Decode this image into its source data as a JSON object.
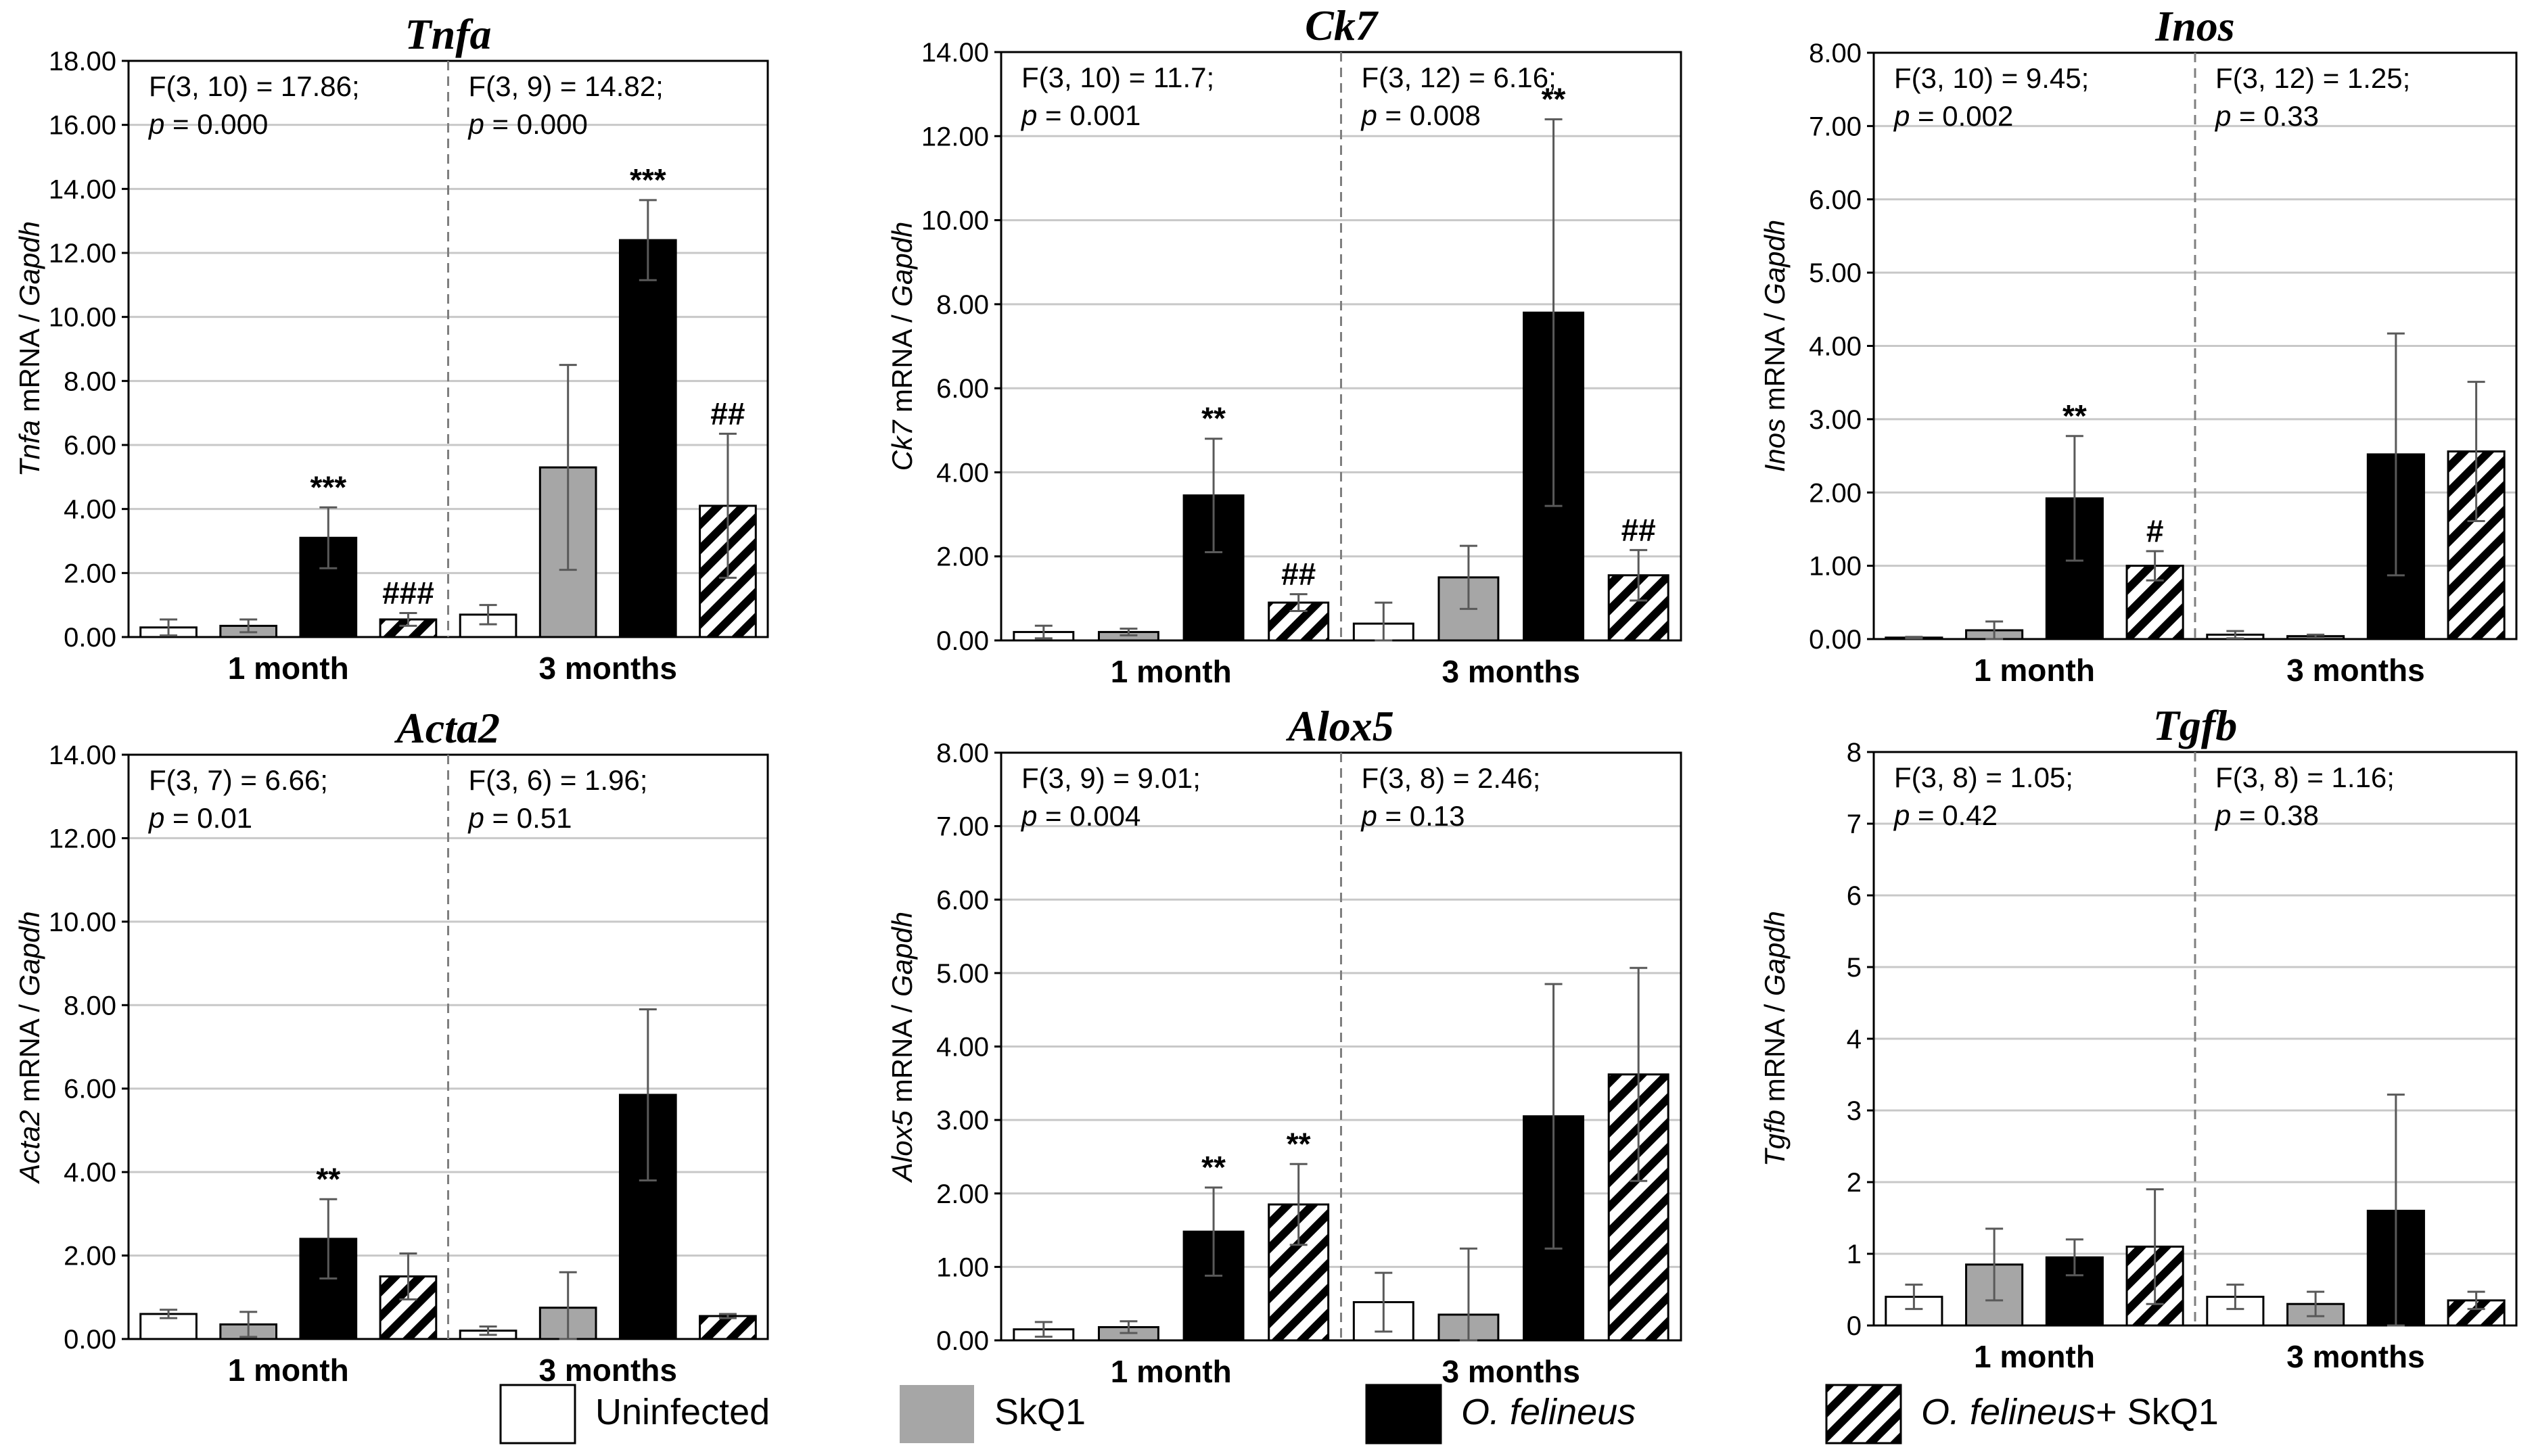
{
  "colors": {
    "uninfected": "#ffffff",
    "skq1": "#a6a6a6",
    "felineus": "#000000",
    "hatch": "#000000",
    "axis": "#000000",
    "grid": "#c8c8c8",
    "divider": "#7f7f7f",
    "error": "#595959"
  },
  "legend": {
    "items": [
      {
        "label": "Uninfected",
        "fill": "white"
      },
      {
        "label": "SkQ1",
        "fill": "gray"
      },
      {
        "label": "O. felineus",
        "fill": "black"
      },
      {
        "label": "O. felineus+ SkQ1",
        "fill": "hatch"
      }
    ]
  },
  "chart_data": [
    {
      "type": "bar",
      "title": "Tnfa",
      "ylabel_gene": "Tnfa",
      "ylabel_rest": " mRNA / ",
      "ylabel_ref": "Gapdh",
      "ylim": [
        0,
        18
      ],
      "ytick_step": 2,
      "ytick_decimals": 2,
      "groups": [
        {
          "label": "1 month",
          "stat_line1": "F(3, 10) = 17.86;",
          "stat_line2": "= 0.000",
          "values": [
            0.3,
            0.35,
            3.1,
            0.55
          ],
          "errors": [
            0.25,
            0.2,
            0.95,
            0.2
          ],
          "marks": [
            "",
            "",
            "***",
            "###"
          ]
        },
        {
          "label": "3 months",
          "stat_line1": "F(3, 9) = 14.82;",
          "stat_line2": "= 0.000",
          "values": [
            0.7,
            5.3,
            12.4,
            4.1
          ],
          "errors": [
            0.3,
            3.2,
            1.25,
            2.25
          ],
          "marks": [
            "",
            "",
            "***",
            "##"
          ]
        }
      ]
    },
    {
      "type": "bar",
      "title": "Ck7",
      "ylabel_gene": "Ck7",
      "ylabel_rest": " mRNA / ",
      "ylabel_ref": "Gapdh",
      "ylim": [
        0,
        14
      ],
      "ytick_step": 2,
      "ytick_decimals": 2,
      "groups": [
        {
          "label": "1 month",
          "stat_line1": "F(3, 10) = 11.7;",
          "stat_line2": "= 0.001",
          "values": [
            0.2,
            0.2,
            3.45,
            0.9
          ],
          "errors": [
            0.15,
            0.08,
            1.35,
            0.2
          ],
          "marks": [
            "",
            "",
            "**",
            "##"
          ]
        },
        {
          "label": "3 months",
          "stat_line1": "F(3, 12) = 6.16;",
          "stat_line2": "= 0.008",
          "values": [
            0.4,
            1.5,
            7.8,
            1.55
          ],
          "errors": [
            0.5,
            0.75,
            4.6,
            0.6
          ],
          "marks": [
            "",
            "",
            "**",
            "##"
          ]
        }
      ]
    },
    {
      "type": "bar",
      "title": "Inos",
      "ylabel_gene": "Inos",
      "ylabel_rest": " mRNA / ",
      "ylabel_ref": "Gapdh",
      "ylim": [
        0,
        8
      ],
      "ytick_step": 1,
      "ytick_decimals": 2,
      "groups": [
        {
          "label": "1 month",
          "stat_line1": "F(3, 10) = 9.45;",
          "stat_line2": "= 0.002",
          "values": [
            0.02,
            0.12,
            1.92,
            1.0
          ],
          "errors": [
            0.01,
            0.12,
            0.85,
            0.2
          ],
          "marks": [
            "",
            "",
            "**",
            "#"
          ]
        },
        {
          "label": "3 months",
          "stat_line1": "F(3, 12) = 1.25;",
          "stat_line2": "= 0.33",
          "values": [
            0.06,
            0.04,
            2.52,
            2.56
          ],
          "errors": [
            0.05,
            0.02,
            1.65,
            0.95
          ],
          "marks": [
            "",
            "",
            "",
            ""
          ]
        }
      ]
    },
    {
      "type": "bar",
      "title": "Acta2",
      "ylabel_gene": "Acta2",
      "ylabel_rest": " mRNA / ",
      "ylabel_ref": "Gapdh",
      "ylim": [
        0,
        14
      ],
      "ytick_step": 2,
      "ytick_decimals": 2,
      "groups": [
        {
          "label": "1 month",
          "stat_line1": "F(3, 7) = 6.66;",
          "stat_line2": "= 0.01",
          "values": [
            0.6,
            0.35,
            2.4,
            1.5
          ],
          "errors": [
            0.1,
            0.3,
            0.95,
            0.55
          ],
          "marks": [
            "",
            "",
            "**",
            ""
          ]
        },
        {
          "label": "3 months",
          "stat_line1": "F(3, 6) = 1.96;",
          "stat_line2": "= 0.51",
          "values": [
            0.2,
            0.75,
            5.85,
            0.55
          ],
          "errors": [
            0.1,
            0.85,
            2.05,
            0.05
          ],
          "marks": [
            "",
            "",
            "",
            ""
          ]
        }
      ]
    },
    {
      "type": "bar",
      "title": "Alox5",
      "ylabel_gene": "Alox5",
      "ylabel_rest": " mRNA / ",
      "ylabel_ref": "Gapdh",
      "ylim": [
        0,
        8
      ],
      "ytick_step": 1,
      "ytick_decimals": 2,
      "groups": [
        {
          "label": "1 month",
          "stat_line1": "F(3, 9) = 9.01;",
          "stat_line2": "= 0.004",
          "values": [
            0.15,
            0.18,
            1.48,
            1.85
          ],
          "errors": [
            0.1,
            0.08,
            0.6,
            0.55
          ],
          "marks": [
            "",
            "",
            "**",
            "**"
          ]
        },
        {
          "label": "3 months",
          "stat_line1": "F(3, 8) = 2.46;",
          "stat_line2": "= 0.13",
          "values": [
            0.52,
            0.35,
            3.05,
            3.62
          ],
          "errors": [
            0.4,
            0.9,
            1.8,
            1.45
          ],
          "marks": [
            "",
            "",
            "",
            ""
          ]
        }
      ]
    },
    {
      "type": "bar",
      "title": "Tgfb",
      "ylabel_gene": "Tgfb",
      "ylabel_rest": " mRNA / ",
      "ylabel_ref": "Gapdh",
      "ylim": [
        0,
        8
      ],
      "ytick_step": 1,
      "ytick_decimals": 0,
      "groups": [
        {
          "label": "1 month",
          "stat_line1": "F(3, 8) = 1.05;",
          "stat_line2": "= 0.42",
          "values": [
            0.4,
            0.85,
            0.95,
            1.1
          ],
          "errors": [
            0.17,
            0.5,
            0.25,
            0.8
          ],
          "marks": [
            "",
            "",
            "",
            ""
          ]
        },
        {
          "label": "3 months",
          "stat_line1": "F(3, 8) = 1.16;",
          "stat_line2": "= 0.38",
          "values": [
            0.4,
            0.3,
            1.6,
            0.35
          ],
          "errors": [
            0.17,
            0.17,
            1.62,
            0.12
          ],
          "marks": [
            "",
            "",
            "",
            ""
          ]
        }
      ]
    }
  ]
}
